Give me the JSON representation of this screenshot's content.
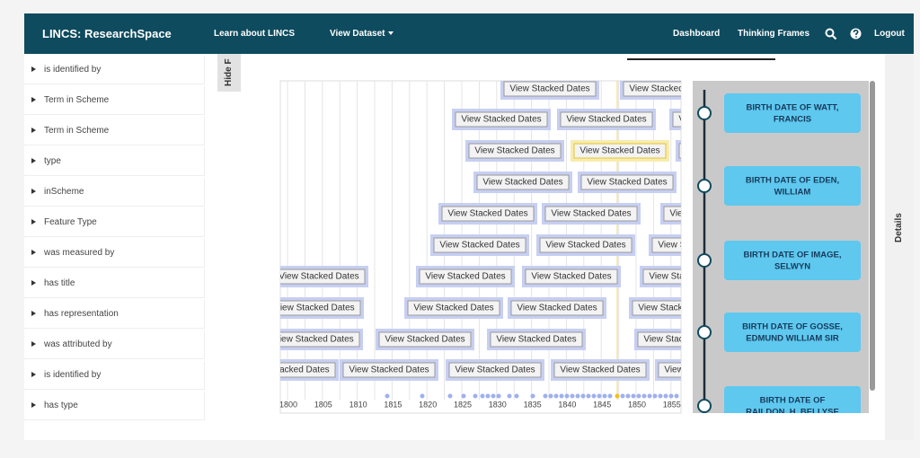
{
  "header": {
    "brand": "LINCS: ResearchSpace",
    "nav": [
      "Learn about LINCS",
      "View Dataset"
    ],
    "right": [
      "Dashboard",
      "Thinking Frames"
    ],
    "logout": "Logout"
  },
  "sidebar": {
    "items": [
      "is identified by",
      "Term in Scheme",
      "Term in Scheme",
      "type",
      "inScheme",
      "Feature Type",
      "was measured by",
      "has title",
      "has representation",
      "was attributed by",
      "is identified by",
      "has type"
    ]
  },
  "hide_tab": "Hide F",
  "details_tab": "Details",
  "timeline": {
    "stack_buttons": [
      "View Stacked Dates",
      "View Stacked Dates",
      "View Stacked Dates",
      "View Stacked Dates",
      "View Stacked Dates",
      "View Stacked Dates",
      "View Stacked Dates",
      "View Stacked Dates",
      "View Stacked Dates",
      "View Stacked Dates",
      "View Stacked Dates",
      "View Stacked Dates",
      "View Stacked Dates",
      "View Stacked Dates",
      "View Stacked Dates",
      "View Stacked Dates",
      "View Stacked Dates",
      "View Stacked Dates",
      "View Stacked Dates",
      "View Stacked Dates",
      "View Stacked Dates",
      "View Stacked Dates",
      "View Stacked Dates",
      "View Stacked Dates",
      "View Stacked Dates",
      "View Stacked Dates",
      "View Stacked Dates",
      "View Stacked Dates",
      "View Stacked Dates",
      "View Stacked Dates",
      "View Stacked Dates",
      "View Stacked Dates",
      "View Stacked Dates"
    ],
    "axis_labels": [
      "1800",
      "1805",
      "1810",
      "1815",
      "1820",
      "1825",
      "1830",
      "1835",
      "1840",
      "1845",
      "1850",
      "1855"
    ]
  },
  "details": {
    "events": [
      [
        "BIRTH DATE OF WATT,",
        "FRANCIS"
      ],
      [
        "BIRTH DATE OF EDEN,",
        "WILLIAM"
      ],
      [
        "BIRTH DATE OF IMAGE,",
        "SELWYN"
      ],
      [
        "BIRTH DATE OF GOSSE,",
        "EDMUND WILLIAM SIR"
      ],
      [
        "BIRTH DATE OF",
        "RAILDON, H. BELLYSE"
      ]
    ]
  }
}
